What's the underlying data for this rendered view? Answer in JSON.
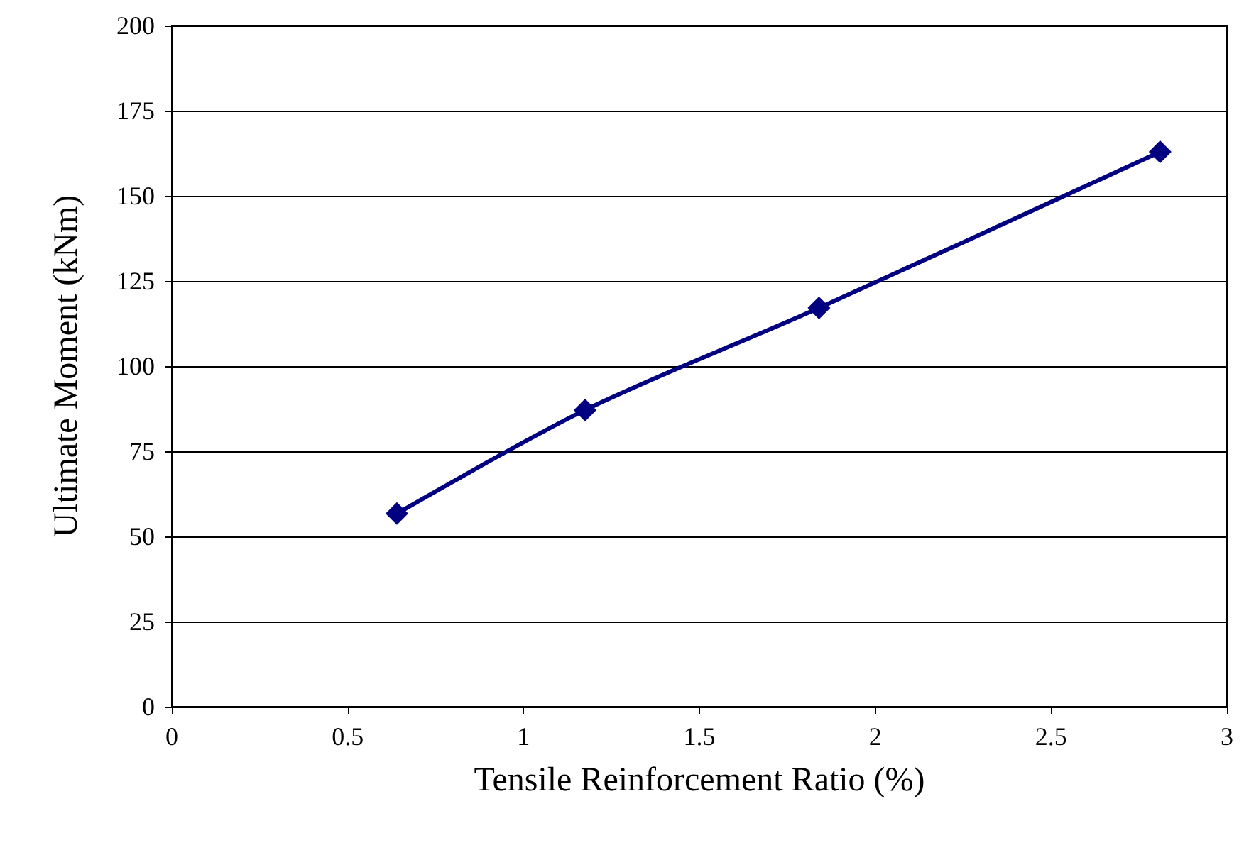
{
  "chart_data": {
    "type": "line",
    "xlabel": "Tensile Reinforcement Ratio (%)",
    "ylabel": "Ultimate Moment (kNm)",
    "x": [
      0.64,
      1.175,
      1.84,
      2.81
    ],
    "series": [
      {
        "color": "#000080",
        "values": [
          56.7,
          87.1,
          117.1,
          162.9
        ]
      }
    ],
    "xlim": [
      0,
      3
    ],
    "xticks": [
      0,
      0.5,
      1,
      1.5,
      2,
      2.5,
      3
    ],
    "ylim": [
      0,
      200
    ],
    "yticks": [
      0,
      25,
      50,
      75,
      100,
      125,
      150,
      175,
      200
    ],
    "grid": "y",
    "marker": "diamond",
    "line_style": "solid"
  }
}
